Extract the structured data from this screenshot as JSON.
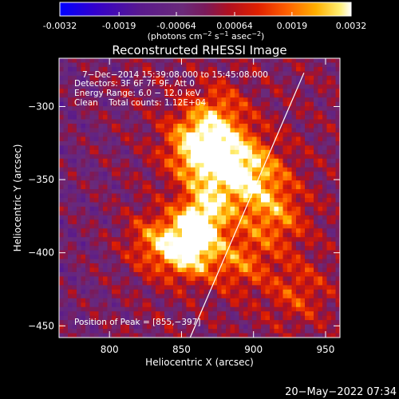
{
  "chart_data": {
    "type": "heatmap",
    "title": "Reconstructed RHESSI Image",
    "xlabel": "Heliocentric X (arcsec)",
    "ylabel": "Heliocentric Y (arcsec)",
    "xlim": [
      765,
      960
    ],
    "ylim": [
      -458,
      -267
    ],
    "x_ticks": [
      800,
      850,
      900,
      950
    ],
    "x_tick_labels": [
      "800",
      "850",
      "900",
      "950"
    ],
    "y_ticks": [
      -300,
      -350,
      -400,
      -450
    ],
    "y_tick_labels": [
      "−300",
      "−350",
      "−400",
      "−450"
    ],
    "colorbar": {
      "min": -0.0032,
      "max": 0.0032,
      "ticks": [
        -0.0032,
        -0.0019,
        -0.00064,
        0.00064,
        0.0019,
        0.0032
      ],
      "tick_labels": [
        "-0.0032",
        "-0.0019",
        "-0.00064",
        "0.00064",
        "0.0019",
        "0.0032"
      ],
      "unit_prefix": "(photons cm",
      "unit_exp1": "−2",
      "unit_mid": " s",
      "unit_exp2": "−1",
      "unit_mid2": " asec",
      "unit_exp3": "−2",
      "unit_suffix": ")"
    },
    "peak": [
      855,
      -397
    ],
    "limb_line": [
      [
        856,
        -458
      ],
      [
        935,
        -277
      ]
    ],
    "grid": false
  },
  "annotations": {
    "line1": "7−Dec−2014 15:39:08.000 to 15:45:08.000",
    "line2": "Detectors: 3F 6F 7F 9F, Att 0",
    "line3": "Energy Range: 6.0 − 12.0 keV",
    "line4": "Clean    Total counts: 1.12E+04",
    "peak_label": "Position of Peak = [855,−397]"
  },
  "timestamp": "20−May−2022 07:34"
}
